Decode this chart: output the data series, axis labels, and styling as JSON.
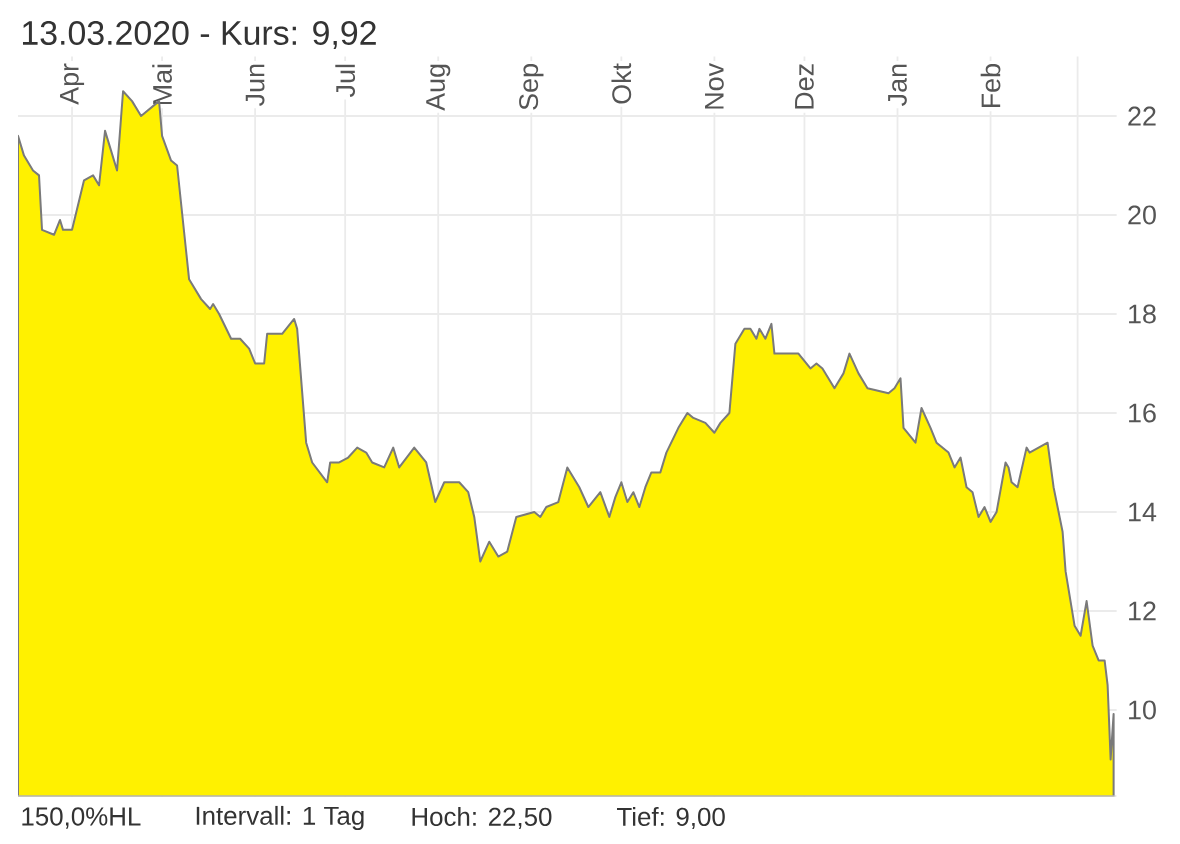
{
  "chart_data": {
    "type": "area",
    "title": "13.03.2020 - Kurs: 9,92",
    "annotations": [
      "150,0%HL",
      "Intervall: 1 Tag",
      "Hoch: 22,50",
      "Tief: 9,00"
    ],
    "x": [
      "2019-03-14",
      "2019-03-16",
      "2019-03-19",
      "2019-03-21",
      "2019-03-22",
      "2019-03-26",
      "2019-03-28",
      "2019-03-29",
      "2019-04-01",
      "2019-04-05",
      "2019-04-08",
      "2019-04-10",
      "2019-04-12",
      "2019-04-14",
      "2019-04-16",
      "2019-04-18",
      "2019-04-21",
      "2019-04-24",
      "2019-04-30",
      "2019-05-01",
      "2019-05-04",
      "2019-05-06",
      "2019-05-10",
      "2019-05-14",
      "2019-05-17",
      "2019-05-18",
      "2019-05-20",
      "2019-05-24",
      "2019-05-27",
      "2019-05-30",
      "2019-06-01",
      "2019-06-04",
      "2019-06-05",
      "2019-06-10",
      "2019-06-14",
      "2019-06-15",
      "2019-06-18",
      "2019-06-20",
      "2019-06-25",
      "2019-06-26",
      "2019-06-29",
      "2019-07-02",
      "2019-07-05",
      "2019-07-08",
      "2019-07-10",
      "2019-07-14",
      "2019-07-17",
      "2019-07-19",
      "2019-07-24",
      "2019-07-28",
      "2019-07-31",
      "2019-08-03",
      "2019-08-08",
      "2019-08-11",
      "2019-08-13",
      "2019-08-15",
      "2019-08-18",
      "2019-08-21",
      "2019-08-24",
      "2019-08-27",
      "2019-09-02",
      "2019-09-04",
      "2019-09-06",
      "2019-09-10",
      "2019-09-13",
      "2019-09-17",
      "2019-09-20",
      "2019-09-24",
      "2019-09-27",
      "2019-09-29",
      "2019-10-01",
      "2019-10-03",
      "2019-10-05",
      "2019-10-07",
      "2019-10-09",
      "2019-10-11",
      "2019-10-14",
      "2019-10-16",
      "2019-10-20",
      "2019-10-23",
      "2019-10-25",
      "2019-10-29",
      "2019-11-01",
      "2019-11-03",
      "2019-11-06",
      "2019-11-08",
      "2019-11-11",
      "2019-11-13",
      "2019-11-15",
      "2019-11-16",
      "2019-11-18",
      "2019-11-20",
      "2019-11-21",
      "2019-11-25",
      "2019-11-29",
      "2019-12-03",
      "2019-12-05",
      "2019-12-07",
      "2019-12-11",
      "2019-12-14",
      "2019-12-16",
      "2019-12-19",
      "2019-12-22",
      "2019-12-29",
      "2019-12-31",
      "2020-01-02",
      "2020-01-03",
      "2020-01-07",
      "2020-01-09",
      "2020-01-12",
      "2020-01-14",
      "2020-01-18",
      "2020-01-20",
      "2020-01-22",
      "2020-01-24",
      "2020-01-26",
      "2020-01-28",
      "2020-01-30",
      "2020-02-01",
      "2020-02-03",
      "2020-02-06",
      "2020-02-07",
      "2020-02-08",
      "2020-02-10",
      "2020-02-13",
      "2020-02-14",
      "2020-02-17",
      "2020-02-20",
      "2020-02-22",
      "2020-02-25",
      "2020-02-26",
      "2020-02-29",
      "2020-03-02",
      "2020-03-04",
      "2020-03-06",
      "2020-03-08",
      "2020-03-10",
      "2020-03-11",
      "2020-03-12",
      "2020-03-13"
    ],
    "values": [
      21.6,
      21.2,
      20.9,
      20.8,
      19.7,
      19.6,
      19.9,
      19.7,
      19.7,
      20.7,
      20.8,
      20.6,
      21.7,
      21.3,
      20.9,
      22.5,
      22.3,
      22.0,
      22.3,
      21.6,
      21.1,
      21.0,
      18.7,
      18.3,
      18.1,
      18.2,
      18.0,
      17.5,
      17.5,
      17.3,
      17.0,
      17.0,
      17.6,
      17.6,
      17.9,
      17.7,
      15.4,
      15.0,
      14.6,
      15.0,
      15.0,
      15.1,
      15.3,
      15.2,
      15.0,
      14.9,
      15.3,
      14.9,
      15.3,
      15.0,
      14.2,
      14.6,
      14.6,
      14.4,
      13.9,
      13.0,
      13.4,
      13.1,
      13.2,
      13.9,
      14.0,
      13.9,
      14.1,
      14.2,
      14.9,
      14.5,
      14.1,
      14.4,
      13.9,
      14.3,
      14.6,
      14.2,
      14.4,
      14.1,
      14.5,
      14.8,
      14.8,
      15.2,
      15.7,
      16.0,
      15.9,
      15.8,
      15.6,
      15.8,
      16.0,
      17.4,
      17.7,
      17.7,
      17.5,
      17.7,
      17.5,
      17.8,
      17.2,
      17.2,
      17.2,
      16.9,
      17.0,
      16.9,
      16.5,
      16.8,
      17.2,
      16.8,
      16.5,
      16.4,
      16.5,
      16.7,
      15.7,
      15.4,
      16.1,
      15.7,
      15.4,
      15.2,
      14.9,
      15.1,
      14.5,
      14.4,
      13.9,
      14.1,
      13.8,
      14.0,
      15.0,
      14.9,
      14.6,
      14.5,
      15.3,
      15.2,
      15.3,
      15.4,
      14.5,
      13.6,
      12.8,
      11.7,
      11.5,
      12.2,
      11.3,
      11.0,
      11.0,
      10.5,
      9.0,
      9.92
    ],
    "color": "#fff100",
    "xlim": [
      "2019-03-14",
      "2020-03-14"
    ],
    "ylim": [
      8.25,
      23.2
    ],
    "xticks": [
      {
        "value": "2019-04-01",
        "label": "Apr"
      },
      {
        "value": "2019-05-01",
        "label": "Mai"
      },
      {
        "value": "2019-06-01",
        "label": "Jun"
      },
      {
        "value": "2019-07-01",
        "label": "Jul"
      },
      {
        "value": "2019-08-01",
        "label": "Aug"
      },
      {
        "value": "2019-09-01",
        "label": "Sep"
      },
      {
        "value": "2019-10-01",
        "label": "Okt"
      },
      {
        "value": "2019-11-01",
        "label": "Nov"
      },
      {
        "value": "2019-12-01",
        "label": "Dez"
      },
      {
        "value": "2020-01-01",
        "label": "Jan"
      },
      {
        "value": "2020-02-01",
        "label": "Feb"
      },
      {
        "value": "2020-03-01",
        "label": null
      }
    ],
    "yticks": [
      10,
      12,
      14,
      16,
      18,
      20,
      22
    ],
    "grid": true
  }
}
